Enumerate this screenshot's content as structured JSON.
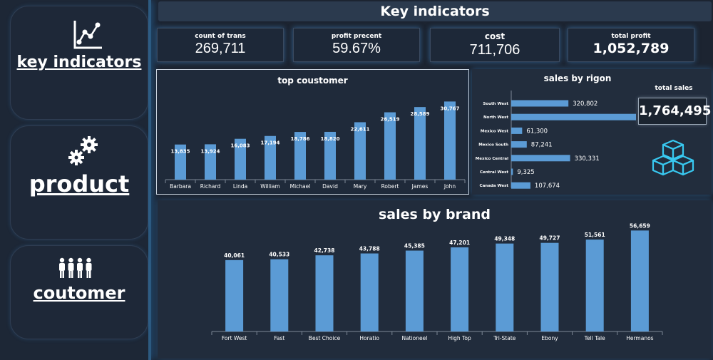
{
  "sidebar": {
    "items": [
      {
        "label": "key indicators",
        "icon": "line-chart-icon"
      },
      {
        "label": "product",
        "icon": "gears-icon"
      },
      {
        "label": "coutomer",
        "icon": "people-icon"
      }
    ]
  },
  "header": {
    "title": "Key indicators"
  },
  "kpis": [
    {
      "label": "count of trans",
      "value": "269,711"
    },
    {
      "label": "profit precent",
      "value": "59.67%"
    },
    {
      "label": "cost",
      "value": "711,706"
    },
    {
      "label": "total profit",
      "value": "1,052,789"
    }
  ],
  "region_panel": {
    "total_label": "total sales",
    "total_value": "1,764,495",
    "icon": "boxes-icon"
  },
  "colors": {
    "bar": "#5b9bd5",
    "background": "#1c2431",
    "glow": "#3f8fd8"
  },
  "chart_data": [
    {
      "type": "bar",
      "title": "top coustomer",
      "categories": [
        "Barbara",
        "Richard",
        "Linda",
        "William",
        "Michael",
        "David",
        "Mary",
        "Robert",
        "James",
        "John"
      ],
      "values": [
        13835,
        13924,
        16083,
        17194,
        18786,
        18820,
        22611,
        26519,
        28589,
        30767
      ],
      "labels": [
        "13,835",
        "13,924",
        "16,083",
        "17,194",
        "18,786",
        "18,820",
        "22,611",
        "26,519",
        "28,589",
        "30,767"
      ]
    },
    {
      "type": "bar",
      "orientation": "horizontal",
      "title": "sales by rigon",
      "categories": [
        "South West",
        "North West",
        "Mexico West",
        "Mexico South",
        "Mexico Central",
        "Central West",
        "Canada West"
      ],
      "values": [
        320802,
        847822,
        61300,
        87241,
        330331,
        9325,
        107674
      ],
      "labels": [
        "320,802",
        "847,822",
        "61,300",
        "87,241",
        "330,331",
        "9,325",
        "107,674"
      ]
    },
    {
      "type": "bar",
      "title": "sales by brand",
      "categories": [
        "Fort West",
        "Fast",
        "Best Choice",
        "Horatio",
        "Nationeel",
        "High Top",
        "Tri-State",
        "Ebony",
        "Tell Tale",
        "Hermanos"
      ],
      "values": [
        40061,
        40533,
        42738,
        43788,
        45385,
        47201,
        49348,
        49727,
        51561,
        56659
      ],
      "labels": [
        "40,061",
        "40,533",
        "42,738",
        "43,788",
        "45,385",
        "47,201",
        "49,348",
        "49,727",
        "51,561",
        "56,659"
      ]
    }
  ]
}
